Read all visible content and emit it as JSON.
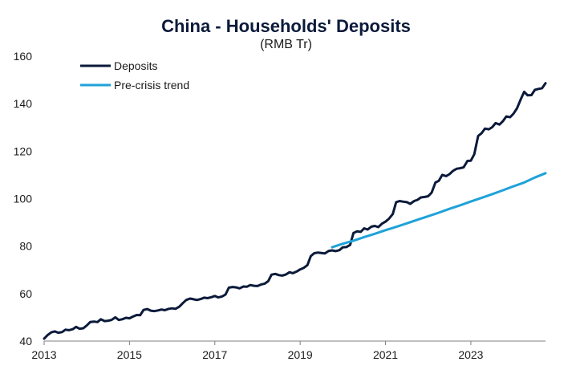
{
  "chart_data": {
    "type": "line",
    "title": "China - Households' Deposits",
    "subtitle": "(RMB Tr)",
    "xlabel": "",
    "ylabel": "",
    "xlim": [
      2013.0,
      2024.75
    ],
    "ylim": [
      40,
      160
    ],
    "y_ticks": [
      40,
      60,
      80,
      100,
      120,
      140,
      160
    ],
    "x_ticks": [
      2013,
      2015,
      2017,
      2019,
      2021,
      2023
    ],
    "x_tick_labels": [
      "2013",
      "2015",
      "2017",
      "2019",
      "2021",
      "2023"
    ],
    "grid": false,
    "legend_position": "top-left",
    "series": [
      {
        "name": "Deposits",
        "color": "#0b1a3a",
        "points": [
          [
            2013.0,
            41.0
          ],
          [
            2013.08,
            42.5
          ],
          [
            2013.17,
            43.7
          ],
          [
            2013.25,
            44.1
          ],
          [
            2013.33,
            43.5
          ],
          [
            2013.42,
            43.8
          ],
          [
            2013.5,
            44.8
          ],
          [
            2013.58,
            44.6
          ],
          [
            2013.67,
            45.0
          ],
          [
            2013.75,
            46.0
          ],
          [
            2013.83,
            45.2
          ],
          [
            2013.92,
            45.4
          ],
          [
            2014.0,
            46.6
          ],
          [
            2014.08,
            48.0
          ],
          [
            2014.17,
            48.2
          ],
          [
            2014.25,
            48.0
          ],
          [
            2014.33,
            49.2
          ],
          [
            2014.42,
            48.4
          ],
          [
            2014.5,
            48.6
          ],
          [
            2014.58,
            48.9
          ],
          [
            2014.67,
            50.0
          ],
          [
            2014.75,
            48.9
          ],
          [
            2014.83,
            49.2
          ],
          [
            2014.92,
            49.8
          ],
          [
            2015.0,
            49.6
          ],
          [
            2015.08,
            50.3
          ],
          [
            2015.17,
            51.0
          ],
          [
            2015.25,
            50.9
          ],
          [
            2015.33,
            53.1
          ],
          [
            2015.42,
            53.5
          ],
          [
            2015.5,
            52.8
          ],
          [
            2015.58,
            52.6
          ],
          [
            2015.67,
            52.9
          ],
          [
            2015.75,
            53.3
          ],
          [
            2015.83,
            53.0
          ],
          [
            2015.92,
            53.6
          ],
          [
            2016.0,
            53.8
          ],
          [
            2016.08,
            53.6
          ],
          [
            2016.17,
            54.5
          ],
          [
            2016.25,
            56.0
          ],
          [
            2016.33,
            57.3
          ],
          [
            2016.42,
            57.9
          ],
          [
            2016.5,
            57.6
          ],
          [
            2016.58,
            57.3
          ],
          [
            2016.67,
            57.7
          ],
          [
            2016.75,
            58.3
          ],
          [
            2016.83,
            58.1
          ],
          [
            2016.92,
            58.5
          ],
          [
            2017.0,
            59.0
          ],
          [
            2017.08,
            58.4
          ],
          [
            2017.17,
            58.8
          ],
          [
            2017.25,
            59.6
          ],
          [
            2017.33,
            62.5
          ],
          [
            2017.42,
            62.8
          ],
          [
            2017.5,
            62.6
          ],
          [
            2017.58,
            62.2
          ],
          [
            2017.67,
            63.0
          ],
          [
            2017.75,
            62.9
          ],
          [
            2017.83,
            63.6
          ],
          [
            2017.92,
            63.3
          ],
          [
            2018.0,
            63.2
          ],
          [
            2018.08,
            63.8
          ],
          [
            2018.17,
            64.2
          ],
          [
            2018.25,
            65.2
          ],
          [
            2018.33,
            68.0
          ],
          [
            2018.42,
            68.3
          ],
          [
            2018.5,
            67.8
          ],
          [
            2018.58,
            67.6
          ],
          [
            2018.67,
            68.1
          ],
          [
            2018.75,
            69.0
          ],
          [
            2018.83,
            68.6
          ],
          [
            2018.92,
            69.3
          ],
          [
            2019.0,
            70.2
          ],
          [
            2019.08,
            70.8
          ],
          [
            2019.17,
            72.0
          ],
          [
            2019.25,
            75.8
          ],
          [
            2019.33,
            77.0
          ],
          [
            2019.42,
            77.3
          ],
          [
            2019.5,
            77.1
          ],
          [
            2019.58,
            76.9
          ],
          [
            2019.67,
            78.0
          ],
          [
            2019.75,
            78.2
          ],
          [
            2019.83,
            77.9
          ],
          [
            2019.92,
            78.3
          ],
          [
            2020.0,
            79.5
          ],
          [
            2020.08,
            79.6
          ],
          [
            2020.17,
            80.5
          ],
          [
            2020.25,
            85.5
          ],
          [
            2020.33,
            86.2
          ],
          [
            2020.42,
            86.0
          ],
          [
            2020.5,
            87.5
          ],
          [
            2020.58,
            87.0
          ],
          [
            2020.67,
            88.2
          ],
          [
            2020.75,
            88.5
          ],
          [
            2020.83,
            88.0
          ],
          [
            2020.92,
            89.5
          ],
          [
            2021.0,
            90.3
          ],
          [
            2021.08,
            91.5
          ],
          [
            2021.17,
            93.5
          ],
          [
            2021.25,
            98.5
          ],
          [
            2021.33,
            99.0
          ],
          [
            2021.42,
            98.7
          ],
          [
            2021.5,
            98.5
          ],
          [
            2021.58,
            97.8
          ],
          [
            2021.67,
            99.0
          ],
          [
            2021.75,
            99.5
          ],
          [
            2021.83,
            100.5
          ],
          [
            2021.92,
            100.7
          ],
          [
            2022.0,
            101.0
          ],
          [
            2022.08,
            102.5
          ],
          [
            2022.17,
            106.8
          ],
          [
            2022.25,
            107.5
          ],
          [
            2022.33,
            110.0
          ],
          [
            2022.42,
            109.5
          ],
          [
            2022.5,
            110.3
          ],
          [
            2022.58,
            111.7
          ],
          [
            2022.67,
            112.6
          ],
          [
            2022.75,
            112.8
          ],
          [
            2022.83,
            113.2
          ],
          [
            2022.92,
            115.9
          ],
          [
            2023.0,
            116.0
          ],
          [
            2023.08,
            118.7
          ],
          [
            2023.17,
            126.4
          ],
          [
            2023.25,
            127.5
          ],
          [
            2023.33,
            129.5
          ],
          [
            2023.42,
            129.2
          ],
          [
            2023.5,
            130.1
          ],
          [
            2023.58,
            131.8
          ],
          [
            2023.67,
            131.2
          ],
          [
            2023.75,
            132.6
          ],
          [
            2023.83,
            134.6
          ],
          [
            2023.92,
            134.3
          ],
          [
            2024.0,
            135.8
          ],
          [
            2024.08,
            138.0
          ],
          [
            2024.17,
            141.8
          ],
          [
            2024.25,
            145.0
          ],
          [
            2024.33,
            143.5
          ],
          [
            2024.42,
            143.6
          ],
          [
            2024.5,
            145.8
          ],
          [
            2024.58,
            146.2
          ],
          [
            2024.67,
            146.5
          ],
          [
            2024.75,
            148.6
          ]
        ]
      },
      {
        "name": "Pre-crisis trend",
        "color": "#1ea2d9",
        "points": [
          [
            2019.75,
            79.5
          ],
          [
            2020.0,
            81.0
          ],
          [
            2020.25,
            82.3
          ],
          [
            2020.5,
            83.8
          ],
          [
            2020.75,
            85.2
          ],
          [
            2021.0,
            86.7
          ],
          [
            2021.25,
            88.1
          ],
          [
            2021.5,
            89.6
          ],
          [
            2021.75,
            91.1
          ],
          [
            2022.0,
            92.6
          ],
          [
            2022.25,
            94.1
          ],
          [
            2022.5,
            95.7
          ],
          [
            2022.75,
            97.2
          ],
          [
            2023.0,
            98.8
          ],
          [
            2023.25,
            100.3
          ],
          [
            2023.5,
            101.9
          ],
          [
            2023.75,
            103.5
          ],
          [
            2024.0,
            105.2
          ],
          [
            2024.25,
            106.8
          ],
          [
            2024.5,
            108.9
          ],
          [
            2024.75,
            110.7
          ]
        ]
      }
    ]
  }
}
